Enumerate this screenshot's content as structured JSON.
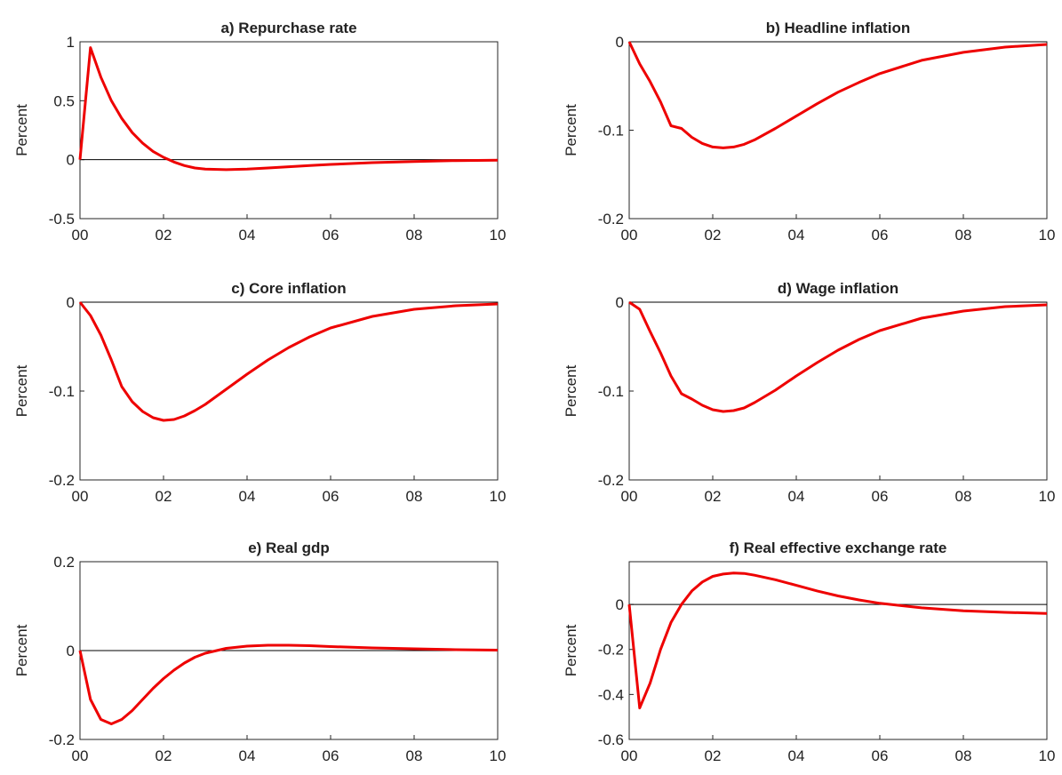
{
  "chart_data": [
    {
      "type": "line",
      "title": "a) Repurchase rate",
      "ylabel": "Percent",
      "color": "#ee0000",
      "zero_line": true,
      "x": [
        0,
        0.25,
        0.5,
        0.75,
        1,
        1.25,
        1.5,
        1.75,
        2,
        2.25,
        2.5,
        2.75,
        3,
        3.5,
        4,
        4.5,
        5,
        5.5,
        6,
        7,
        8,
        9,
        10
      ],
      "values": [
        0,
        0.95,
        0.7,
        0.5,
        0.35,
        0.23,
        0.14,
        0.07,
        0.02,
        -0.02,
        -0.05,
        -0.07,
        -0.08,
        -0.085,
        -0.08,
        -0.07,
        -0.06,
        -0.05,
        -0.04,
        -0.025,
        -0.015,
        -0.008,
        -0.005
      ],
      "xlim": [
        0,
        10
      ],
      "xticks": [
        {
          "value": 0,
          "label": "00"
        },
        {
          "value": 2,
          "label": "02"
        },
        {
          "value": 4,
          "label": "04"
        },
        {
          "value": 6,
          "label": "06"
        },
        {
          "value": 8,
          "label": "08"
        },
        10
      ],
      "ylim": [
        -0.5,
        1
      ],
      "yticks": [
        -0.5,
        0,
        0.5,
        1
      ]
    },
    {
      "type": "line",
      "title": "b) Headline inflation",
      "ylabel": "Percent",
      "color": "#ee0000",
      "zero_line": true,
      "x": [
        0,
        0.25,
        0.5,
        0.75,
        1,
        1.25,
        1.5,
        1.75,
        2,
        2.25,
        2.5,
        2.75,
        3,
        3.5,
        4,
        4.5,
        5,
        5.5,
        6,
        7,
        8,
        9,
        10
      ],
      "values": [
        0,
        -0.025,
        -0.045,
        -0.068,
        -0.095,
        -0.098,
        -0.108,
        -0.115,
        -0.119,
        -0.12,
        -0.119,
        -0.116,
        -0.111,
        -0.098,
        -0.084,
        -0.07,
        -0.057,
        -0.046,
        -0.036,
        -0.021,
        -0.012,
        -0.006,
        -0.003
      ],
      "xlim": [
        0,
        10
      ],
      "xticks": [
        {
          "value": 0,
          "label": "00"
        },
        {
          "value": 2,
          "label": "02"
        },
        {
          "value": 4,
          "label": "04"
        },
        {
          "value": 6,
          "label": "06"
        },
        {
          "value": 8,
          "label": "08"
        },
        10
      ],
      "ylim": [
        -0.2,
        0
      ],
      "yticks": [
        -0.2,
        -0.1,
        0
      ]
    },
    {
      "type": "line",
      "title": "c) Core inflation",
      "ylabel": "Percent",
      "color": "#ee0000",
      "zero_line": true,
      "x": [
        0,
        0.25,
        0.5,
        0.75,
        1,
        1.25,
        1.5,
        1.75,
        2,
        2.25,
        2.5,
        2.75,
        3,
        3.5,
        4,
        4.5,
        5,
        5.5,
        6,
        7,
        8,
        9,
        10
      ],
      "values": [
        0,
        -0.015,
        -0.037,
        -0.065,
        -0.095,
        -0.112,
        -0.123,
        -0.13,
        -0.133,
        -0.132,
        -0.128,
        -0.122,
        -0.115,
        -0.098,
        -0.081,
        -0.065,
        -0.051,
        -0.039,
        -0.029,
        -0.016,
        -0.008,
        -0.004,
        -0.002
      ],
      "xlim": [
        0,
        10
      ],
      "xticks": [
        {
          "value": 0,
          "label": "00"
        },
        {
          "value": 2,
          "label": "02"
        },
        {
          "value": 4,
          "label": "04"
        },
        {
          "value": 6,
          "label": "06"
        },
        {
          "value": 8,
          "label": "08"
        },
        10
      ],
      "ylim": [
        -0.2,
        0
      ],
      "yticks": [
        -0.2,
        -0.1,
        0
      ]
    },
    {
      "type": "line",
      "title": "d) Wage inflation",
      "ylabel": "Percent",
      "color": "#ee0000",
      "zero_line": true,
      "x": [
        0,
        0.25,
        0.5,
        0.75,
        1,
        1.25,
        1.5,
        1.75,
        2,
        2.25,
        2.5,
        2.75,
        3,
        3.5,
        4,
        4.5,
        5,
        5.5,
        6,
        7,
        8,
        9,
        10
      ],
      "values": [
        0,
        -0.008,
        -0.033,
        -0.057,
        -0.083,
        -0.103,
        -0.109,
        -0.116,
        -0.121,
        -0.123,
        -0.122,
        -0.119,
        -0.113,
        -0.099,
        -0.083,
        -0.068,
        -0.054,
        -0.042,
        -0.032,
        -0.018,
        -0.01,
        -0.005,
        -0.003
      ],
      "xlim": [
        0,
        10
      ],
      "xticks": [
        {
          "value": 0,
          "label": "00"
        },
        {
          "value": 2,
          "label": "02"
        },
        {
          "value": 4,
          "label": "04"
        },
        {
          "value": 6,
          "label": "06"
        },
        {
          "value": 8,
          "label": "08"
        },
        10
      ],
      "ylim": [
        -0.2,
        0
      ],
      "yticks": [
        -0.2,
        -0.1,
        0
      ]
    },
    {
      "type": "line",
      "title": "e) Real gdp",
      "ylabel": "Percent",
      "color": "#ee0000",
      "zero_line": true,
      "x": [
        0,
        0.25,
        0.5,
        0.75,
        1,
        1.25,
        1.5,
        1.75,
        2,
        2.25,
        2.5,
        2.75,
        3,
        3.5,
        4,
        4.5,
        5,
        5.5,
        6,
        7,
        8,
        9,
        10
      ],
      "values": [
        0,
        -0.11,
        -0.155,
        -0.165,
        -0.155,
        -0.135,
        -0.11,
        -0.085,
        -0.063,
        -0.044,
        -0.028,
        -0.015,
        -0.006,
        0.005,
        0.01,
        0.012,
        0.012,
        0.011,
        0.009,
        0.006,
        0.004,
        0.002,
        0.001
      ],
      "xlim": [
        0,
        10
      ],
      "xticks": [
        {
          "value": 0,
          "label": "00"
        },
        {
          "value": 2,
          "label": "02"
        },
        {
          "value": 4,
          "label": "04"
        },
        {
          "value": 6,
          "label": "06"
        },
        {
          "value": 8,
          "label": "08"
        },
        10
      ],
      "ylim": [
        -0.2,
        0.2
      ],
      "yticks": [
        -0.2,
        0,
        0.2
      ]
    },
    {
      "type": "line",
      "title": "f) Real effective exchange rate",
      "ylabel": "Percent",
      "color": "#ee0000",
      "zero_line": true,
      "x": [
        0,
        0.25,
        0.5,
        0.75,
        1,
        1.25,
        1.5,
        1.75,
        2,
        2.25,
        2.5,
        2.75,
        3,
        3.5,
        4,
        4.5,
        5,
        5.5,
        6,
        7,
        8,
        9,
        10
      ],
      "values": [
        0,
        -0.46,
        -0.35,
        -0.2,
        -0.08,
        0,
        0.06,
        0.1,
        0.125,
        0.135,
        0.14,
        0.138,
        0.13,
        0.11,
        0.085,
        0.06,
        0.038,
        0.02,
        0.005,
        -0.015,
        -0.028,
        -0.035,
        -0.04
      ],
      "xlim": [
        0,
        10
      ],
      "xticks": [
        {
          "value": 0,
          "label": "00"
        },
        {
          "value": 2,
          "label": "02"
        },
        {
          "value": 4,
          "label": "04"
        },
        {
          "value": 6,
          "label": "06"
        },
        {
          "value": 8,
          "label": "08"
        },
        10
      ],
      "ylim": [
        -0.6,
        0.19
      ],
      "yticks": [
        -0.6,
        -0.4,
        -0.2,
        0
      ]
    }
  ]
}
